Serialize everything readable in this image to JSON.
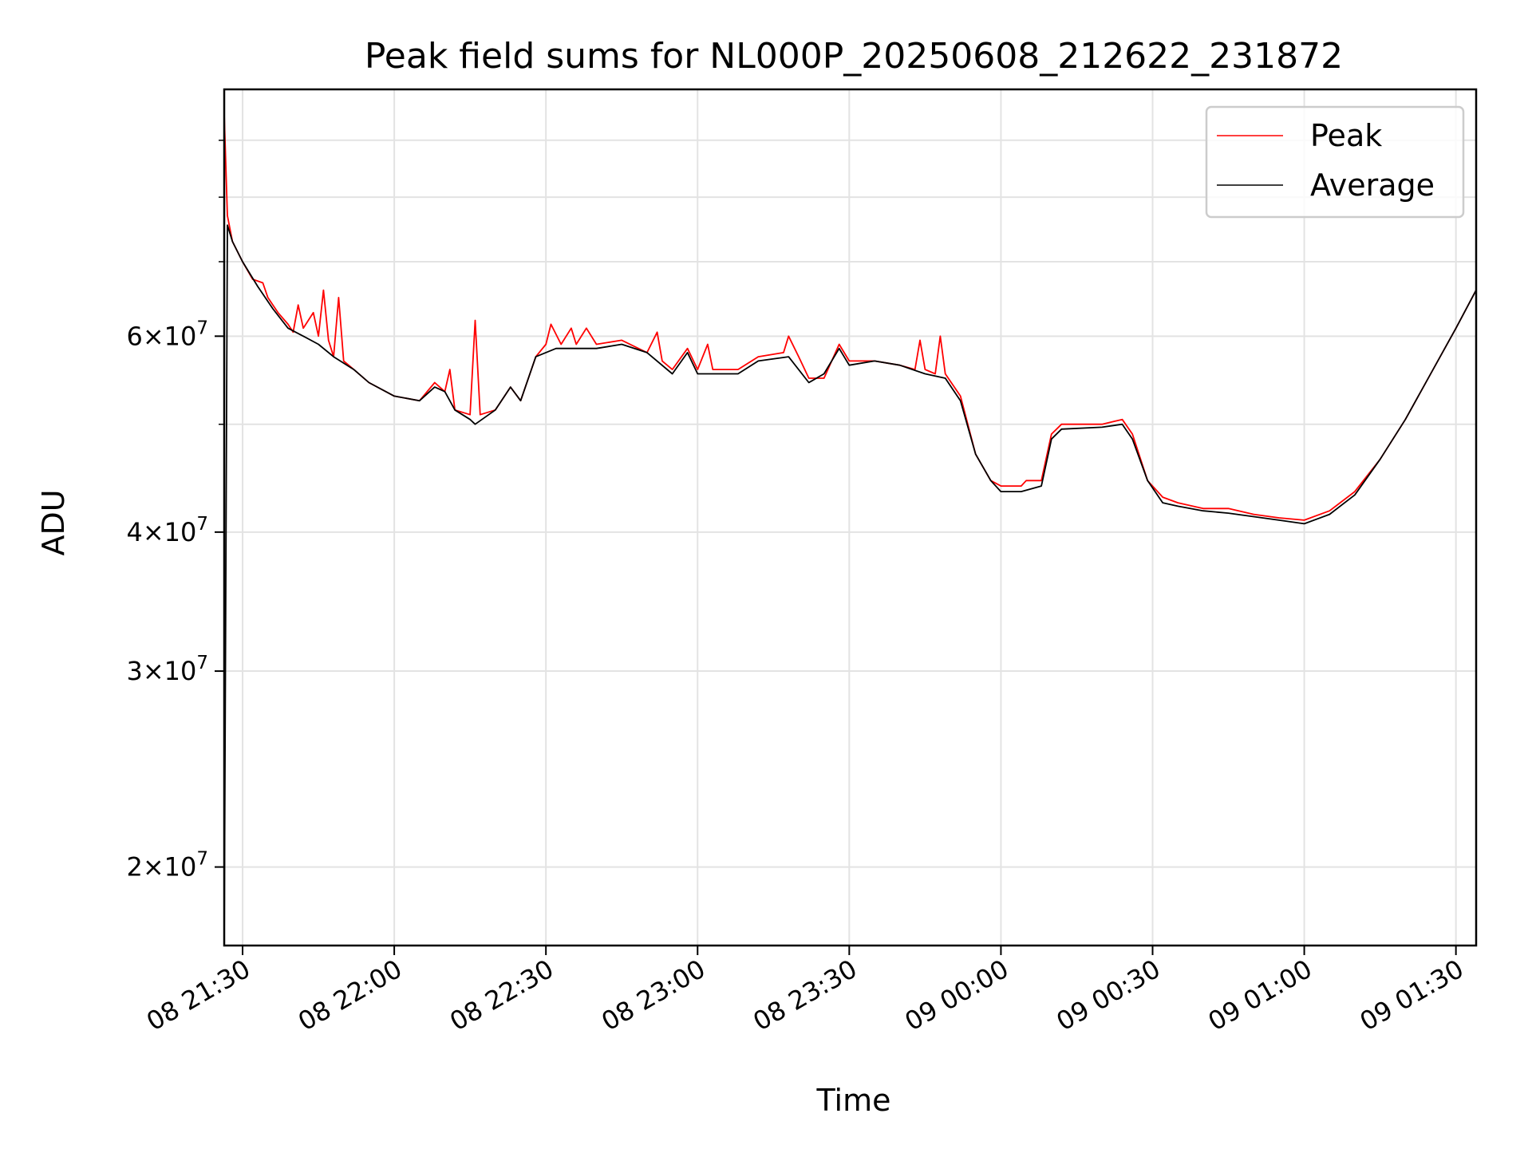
{
  "chart_data": {
    "type": "line",
    "title": "Peak field sums for NL000P_20250608_212622_231872",
    "xlabel": "Time",
    "ylabel": "ADU",
    "yscale": "log",
    "xlim": [
      "2025-06-08 21:26:22",
      "2025-06-09 01:34:00"
    ],
    "ylim": [
      17000000,
      100000000
    ],
    "grid": true,
    "legend_position": "upper right",
    "x_ticks": [
      {
        "label": "08 21:30",
        "time": "2025-06-08 21:30"
      },
      {
        "label": "08 22:00",
        "time": "2025-06-08 22:00"
      },
      {
        "label": "08 22:30",
        "time": "2025-06-08 22:30"
      },
      {
        "label": "08 23:00",
        "time": "2025-06-08 23:00"
      },
      {
        "label": "08 23:30",
        "time": "2025-06-08 23:30"
      },
      {
        "label": "09 00:00",
        "time": "2025-06-09 00:00"
      },
      {
        "label": "09 00:30",
        "time": "2025-06-09 00:30"
      },
      {
        "label": "09 01:00",
        "time": "2025-06-09 01:00"
      },
      {
        "label": "09 01:30",
        "time": "2025-06-09 01:30"
      }
    ],
    "y_ticks": [
      {
        "value": 20000000,
        "mantissa": "2",
        "base": "10",
        "exp": "7"
      },
      {
        "value": 30000000,
        "mantissa": "3",
        "base": "10",
        "exp": "7"
      },
      {
        "value": 40000000,
        "mantissa": "4",
        "base": "10",
        "exp": "7"
      },
      {
        "value": 60000000,
        "mantissa": "6",
        "base": "10",
        "exp": "7"
      }
    ],
    "y_minor_ticks": [
      50000000,
      70000000,
      80000000,
      90000000
    ],
    "series": [
      {
        "name": "Peak",
        "color": "#ff0000",
        "points": [
          [
            "2025-06-08 21:26:22",
            95000000
          ],
          [
            "2025-06-08 21:27:00",
            77000000
          ],
          [
            "2025-06-08 21:28:00",
            73000000
          ],
          [
            "2025-06-08 21:30:00",
            70000000
          ],
          [
            "2025-06-08 21:32:00",
            67500000
          ],
          [
            "2025-06-08 21:34:00",
            67000000
          ],
          [
            "2025-06-08 21:35:00",
            65000000
          ],
          [
            "2025-06-08 21:37:00",
            63000000
          ],
          [
            "2025-06-08 21:39:00",
            61500000
          ],
          [
            "2025-06-08 21:40:00",
            60500000
          ],
          [
            "2025-06-08 21:41:00",
            64000000
          ],
          [
            "2025-06-08 21:42:00",
            61000000
          ],
          [
            "2025-06-08 21:44:00",
            63000000
          ],
          [
            "2025-06-08 21:45:00",
            60000000
          ],
          [
            "2025-06-08 21:46:00",
            66000000
          ],
          [
            "2025-06-08 21:47:00",
            59500000
          ],
          [
            "2025-06-08 21:48:00",
            57500000
          ],
          [
            "2025-06-08 21:49:00",
            65000000
          ],
          [
            "2025-06-08 21:50:00",
            57000000
          ],
          [
            "2025-06-08 21:52:00",
            56000000
          ],
          [
            "2025-06-08 21:55:00",
            54500000
          ],
          [
            "2025-06-08 22:00:00",
            53000000
          ],
          [
            "2025-06-08 22:05:00",
            52500000
          ],
          [
            "2025-06-08 22:08:00",
            54500000
          ],
          [
            "2025-06-08 22:10:00",
            53500000
          ],
          [
            "2025-06-08 22:11:00",
            56000000
          ],
          [
            "2025-06-08 22:12:00",
            51500000
          ],
          [
            "2025-06-08 22:15:00",
            51000000
          ],
          [
            "2025-06-08 22:16:00",
            62000000
          ],
          [
            "2025-06-08 22:17:00",
            51000000
          ],
          [
            "2025-06-08 22:20:00",
            51500000
          ],
          [
            "2025-06-08 22:23:00",
            54000000
          ],
          [
            "2025-06-08 22:25:00",
            52500000
          ],
          [
            "2025-06-08 22:28:00",
            57500000
          ],
          [
            "2025-06-08 22:30:00",
            59000000
          ],
          [
            "2025-06-08 22:31:00",
            61500000
          ],
          [
            "2025-06-08 22:33:00",
            59000000
          ],
          [
            "2025-06-08 22:35:00",
            61000000
          ],
          [
            "2025-06-08 22:36:00",
            59000000
          ],
          [
            "2025-06-08 22:38:00",
            61000000
          ],
          [
            "2025-06-08 22:40:00",
            59000000
          ],
          [
            "2025-06-08 22:45:00",
            59500000
          ],
          [
            "2025-06-08 22:50:00",
            58000000
          ],
          [
            "2025-06-08 22:52:00",
            60500000
          ],
          [
            "2025-06-08 22:53:00",
            57000000
          ],
          [
            "2025-06-08 22:55:00",
            56000000
          ],
          [
            "2025-06-08 22:58:00",
            58500000
          ],
          [
            "2025-06-08 23:00:00",
            56000000
          ],
          [
            "2025-06-08 23:02:00",
            59000000
          ],
          [
            "2025-06-08 23:03:00",
            56000000
          ],
          [
            "2025-06-08 23:08:00",
            56000000
          ],
          [
            "2025-06-08 23:12:00",
            57500000
          ],
          [
            "2025-06-08 23:17:00",
            58000000
          ],
          [
            "2025-06-08 23:18:00",
            60000000
          ],
          [
            "2025-06-08 23:20:00",
            57500000
          ],
          [
            "2025-06-08 23:22:00",
            55000000
          ],
          [
            "2025-06-08 23:25:00",
            55000000
          ],
          [
            "2025-06-08 23:28:00",
            59000000
          ],
          [
            "2025-06-08 23:30:00",
            57000000
          ],
          [
            "2025-06-08 23:35:00",
            57000000
          ],
          [
            "2025-06-08 23:40:00",
            56500000
          ],
          [
            "2025-06-08 23:43:00",
            56000000
          ],
          [
            "2025-06-08 23:44:00",
            59500000
          ],
          [
            "2025-06-08 23:45:00",
            56000000
          ],
          [
            "2025-06-08 23:47:00",
            55500000
          ],
          [
            "2025-06-08 23:48:00",
            60000000
          ],
          [
            "2025-06-08 23:49:00",
            55500000
          ],
          [
            "2025-06-08 23:52:00",
            53000000
          ],
          [
            "2025-06-08 23:55:00",
            47000000
          ],
          [
            "2025-06-08 23:58:00",
            44500000
          ],
          [
            "2025-06-09 00:00:00",
            44000000
          ],
          [
            "2025-06-09 00:04:00",
            44000000
          ],
          [
            "2025-06-09 00:05:00",
            44500000
          ],
          [
            "2025-06-09 00:08:00",
            44500000
          ],
          [
            "2025-06-09 00:10:00",
            49000000
          ],
          [
            "2025-06-09 00:12:00",
            50000000
          ],
          [
            "2025-06-09 00:15:00",
            50000000
          ],
          [
            "2025-06-09 00:20:00",
            50000000
          ],
          [
            "2025-06-09 00:24:00",
            50500000
          ],
          [
            "2025-06-09 00:26:00",
            49000000
          ],
          [
            "2025-06-09 00:29:00",
            44500000
          ],
          [
            "2025-06-09 00:32:00",
            43000000
          ],
          [
            "2025-06-09 00:35:00",
            42500000
          ],
          [
            "2025-06-09 00:40:00",
            42000000
          ],
          [
            "2025-06-09 00:45:00",
            42000000
          ],
          [
            "2025-06-09 00:50:00",
            41500000
          ],
          [
            "2025-06-09 00:55:00",
            41200000
          ],
          [
            "2025-06-09 01:00:00",
            41000000
          ],
          [
            "2025-06-09 01:05:00",
            41800000
          ],
          [
            "2025-06-09 01:10:00",
            43500000
          ],
          [
            "2025-06-09 01:15:00",
            46500000
          ],
          [
            "2025-06-09 01:20:00",
            50500000
          ],
          [
            "2025-06-09 01:25:00",
            55500000
          ],
          [
            "2025-06-09 01:30:00",
            61000000
          ],
          [
            "2025-06-09 01:34:00",
            66000000
          ]
        ]
      },
      {
        "name": "Average",
        "color": "#000000",
        "points": [
          [
            "2025-06-08 21:26:22",
            17000000
          ],
          [
            "2025-06-08 21:27:00",
            75500000
          ],
          [
            "2025-06-08 21:28:00",
            73000000
          ],
          [
            "2025-06-08 21:30:00",
            70000000
          ],
          [
            "2025-06-08 21:33:00",
            66500000
          ],
          [
            "2025-06-08 21:36:00",
            63500000
          ],
          [
            "2025-06-08 21:39:00",
            61000000
          ],
          [
            "2025-06-08 21:42:00",
            60000000
          ],
          [
            "2025-06-08 21:45:00",
            59000000
          ],
          [
            "2025-06-08 21:48:00",
            57500000
          ],
          [
            "2025-06-08 21:52:00",
            56000000
          ],
          [
            "2025-06-08 21:55:00",
            54500000
          ],
          [
            "2025-06-08 22:00:00",
            53000000
          ],
          [
            "2025-06-08 22:05:00",
            52500000
          ],
          [
            "2025-06-08 22:08:00",
            54000000
          ],
          [
            "2025-06-08 22:10:00",
            53500000
          ],
          [
            "2025-06-08 22:12:00",
            51500000
          ],
          [
            "2025-06-08 22:15:00",
            50500000
          ],
          [
            "2025-06-08 22:16:00",
            50000000
          ],
          [
            "2025-06-08 22:20:00",
            51500000
          ],
          [
            "2025-06-08 22:23:00",
            54000000
          ],
          [
            "2025-06-08 22:25:00",
            52500000
          ],
          [
            "2025-06-08 22:28:00",
            57500000
          ],
          [
            "2025-06-08 22:32:00",
            58500000
          ],
          [
            "2025-06-08 22:36:00",
            58500000
          ],
          [
            "2025-06-08 22:40:00",
            58500000
          ],
          [
            "2025-06-08 22:45:00",
            59000000
          ],
          [
            "2025-06-08 22:50:00",
            58000000
          ],
          [
            "2025-06-08 22:55:00",
            55500000
          ],
          [
            "2025-06-08 22:58:00",
            58000000
          ],
          [
            "2025-06-08 23:00:00",
            55500000
          ],
          [
            "2025-06-08 23:08:00",
            55500000
          ],
          [
            "2025-06-08 23:12:00",
            57000000
          ],
          [
            "2025-06-08 23:18:00",
            57500000
          ],
          [
            "2025-06-08 23:22:00",
            54500000
          ],
          [
            "2025-06-08 23:25:00",
            55500000
          ],
          [
            "2025-06-08 23:28:00",
            58500000
          ],
          [
            "2025-06-08 23:30:00",
            56500000
          ],
          [
            "2025-06-08 23:35:00",
            57000000
          ],
          [
            "2025-06-08 23:40:00",
            56500000
          ],
          [
            "2025-06-08 23:45:00",
            55500000
          ],
          [
            "2025-06-08 23:49:00",
            55000000
          ],
          [
            "2025-06-08 23:52:00",
            52500000
          ],
          [
            "2025-06-08 23:55:00",
            47000000
          ],
          [
            "2025-06-08 23:58:00",
            44500000
          ],
          [
            "2025-06-09 00:00:00",
            43500000
          ],
          [
            "2025-06-09 00:04:00",
            43500000
          ],
          [
            "2025-06-09 00:08:00",
            44000000
          ],
          [
            "2025-06-09 00:10:00",
            48500000
          ],
          [
            "2025-06-09 00:12:00",
            49500000
          ],
          [
            "2025-06-09 00:20:00",
            49700000
          ],
          [
            "2025-06-09 00:24:00",
            50000000
          ],
          [
            "2025-06-09 00:26:00",
            48500000
          ],
          [
            "2025-06-09 00:29:00",
            44500000
          ],
          [
            "2025-06-09 00:32:00",
            42500000
          ],
          [
            "2025-06-09 00:35:00",
            42200000
          ],
          [
            "2025-06-09 00:40:00",
            41800000
          ],
          [
            "2025-06-09 00:45:00",
            41600000
          ],
          [
            "2025-06-09 00:50:00",
            41300000
          ],
          [
            "2025-06-09 00:55:00",
            41000000
          ],
          [
            "2025-06-09 01:00:00",
            40700000
          ],
          [
            "2025-06-09 01:05:00",
            41500000
          ],
          [
            "2025-06-09 01:10:00",
            43200000
          ],
          [
            "2025-06-09 01:15:00",
            46500000
          ],
          [
            "2025-06-09 01:20:00",
            50500000
          ],
          [
            "2025-06-09 01:25:00",
            55500000
          ],
          [
            "2025-06-09 01:30:00",
            61000000
          ],
          [
            "2025-06-09 01:34:00",
            66000000
          ]
        ]
      }
    ]
  }
}
